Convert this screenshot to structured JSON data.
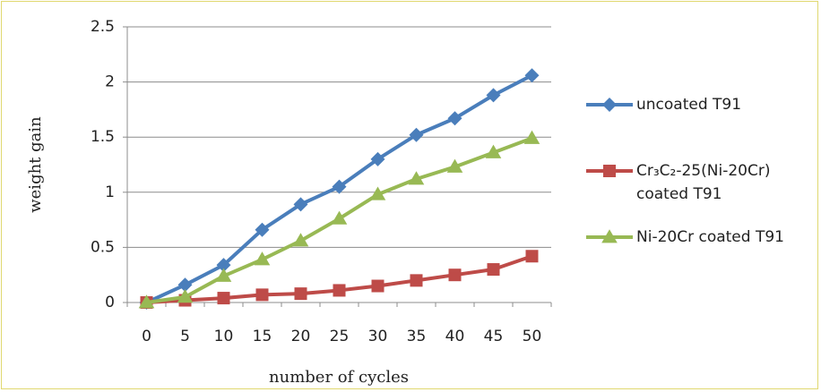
{
  "chart_data": {
    "type": "line",
    "xlabel": "number of cycles",
    "ylabel": "weight gain",
    "categories": [
      0,
      5,
      10,
      15,
      20,
      25,
      30,
      35,
      40,
      45,
      50
    ],
    "ylim": [
      0,
      2.5
    ],
    "yticks": [
      0,
      0.5,
      1,
      1.5,
      2,
      2.5
    ],
    "grid": true,
    "legend": "right",
    "series": [
      {
        "name": "uncoated T91",
        "color": "#4a7ebb",
        "marker": "diamond",
        "values": [
          0,
          0.16,
          0.34,
          0.66,
          0.89,
          1.05,
          1.3,
          1.52,
          1.67,
          1.88,
          2.06
        ]
      },
      {
        "name": "Cr₃C₂-25(Ni-20Cr) coated T91",
        "color": "#be4b48",
        "marker": "square",
        "values": [
          0,
          0.02,
          0.04,
          0.07,
          0.08,
          0.11,
          0.15,
          0.2,
          0.25,
          0.3,
          0.42
        ]
      },
      {
        "name": "Ni-20Cr coated T91",
        "color": "#98b954",
        "marker": "triangle",
        "values": [
          0,
          0.05,
          0.24,
          0.39,
          0.56,
          0.76,
          0.98,
          1.12,
          1.23,
          1.36,
          1.49
        ]
      }
    ]
  }
}
